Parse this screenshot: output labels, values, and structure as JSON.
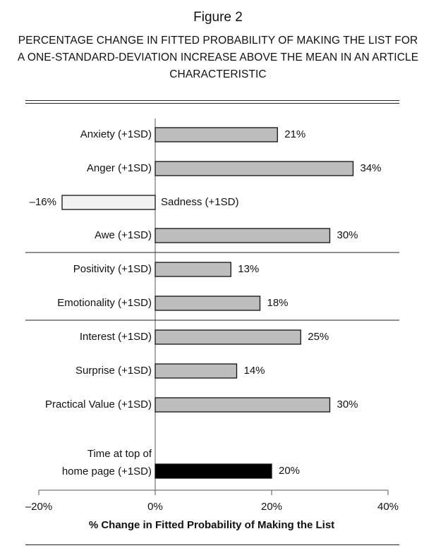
{
  "figure": {
    "title": "Figure 2",
    "subtitle": "PERCENTAGE CHANGE IN FITTED PROBABILITY OF MAKING THE LIST FOR A ONE-STANDARD-DEVIATION INCREASE ABOVE THE MEAN IN AN ARTICLE CHARACTERISTIC"
  },
  "colors": {
    "bar_fill": "#bdbdbd",
    "negative_bar_fill": "#f2f2f2",
    "highlight_bar_fill": "#000000",
    "bar_stroke": "#111111"
  },
  "chart_data": {
    "type": "bar",
    "orientation": "horizontal",
    "categories": [
      "Anxiety (+1SD)",
      "Anger (+1SD)",
      "Sadness (+1SD)",
      "Awe (+1SD)",
      "Positivity (+1SD)",
      "Emotionality (+1SD)",
      "Interest (+1SD)",
      "Surprise (+1SD)",
      "Practical Value (+1SD)",
      "Time at top of home page (+1SD)"
    ],
    "category_lines": [
      [
        "Anxiety (+1SD)"
      ],
      [
        "Anger (+1SD)"
      ],
      [
        "Sadness (+1SD)"
      ],
      [
        "Awe (+1SD)"
      ],
      [
        "Positivity (+1SD)"
      ],
      [
        "Emotionality (+1SD)"
      ],
      [
        "Interest (+1SD)"
      ],
      [
        "Surprise (+1SD)"
      ],
      [
        "Practical Value (+1SD)"
      ],
      [
        "Time at top of",
        "home page (+1SD)"
      ]
    ],
    "values": [
      21,
      34,
      -16,
      30,
      13,
      18,
      25,
      14,
      30,
      20
    ],
    "value_labels": [
      "21%",
      "34%",
      "–16%",
      "30%",
      "13%",
      "18%",
      "25%",
      "14%",
      "30%",
      "20%"
    ],
    "groups": [
      [
        0,
        1,
        2,
        3
      ],
      [
        4,
        5
      ],
      [
        6,
        7,
        8
      ],
      [
        9
      ]
    ],
    "xlabel": "% Change in Fitted Probability of Making the List",
    "ylabel": "",
    "xlim": [
      -20,
      40
    ],
    "xticks": [
      -20,
      0,
      20,
      40
    ],
    "xtick_labels": [
      "–20%",
      "0%",
      "20%",
      "40%"
    ],
    "grid": false,
    "legend": "none"
  }
}
